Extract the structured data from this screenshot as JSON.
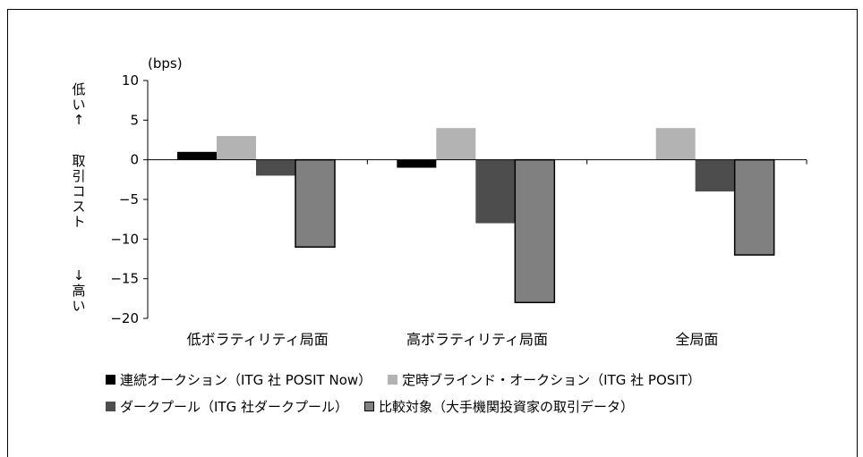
{
  "chart_data": {
    "type": "bar",
    "categories": [
      "低ボラティリティ局面",
      "高ボラティリティ局面",
      "全局面"
    ],
    "series": [
      {
        "name": "連続オークション（ITG 社 POSIT Now）",
        "values": [
          1,
          -1,
          0
        ],
        "color": "#000000"
      },
      {
        "name": "定時ブラインド・オークション（ITG 社 POSIT）",
        "values": [
          3,
          4,
          4
        ],
        "color": "#b3b3b3"
      },
      {
        "name": "ダークプール（ITG 社ダークプール）",
        "values": [
          -2,
          -8,
          -4
        ],
        "color": "#4d4d4d"
      },
      {
        "name": "比較対象（大手機関投資家の取引データ）",
        "values": [
          -11,
          -18,
          -12
        ],
        "color": "#808080",
        "outlined": true
      }
    ],
    "ylim": [
      -20,
      10
    ],
    "yticks": [
      10,
      5,
      0,
      -5,
      -10,
      -15,
      -20
    ],
    "ytick_labels": [
      "10",
      "5",
      "0",
      "−5",
      "−10",
      "−15",
      "−20"
    ],
    "unit_label": "(bps)",
    "ylabel_top": "低い↑",
    "ylabel_mid": "取引コスト",
    "ylabel_bottom": "↓高い",
    "legend_position": "bottom"
  }
}
